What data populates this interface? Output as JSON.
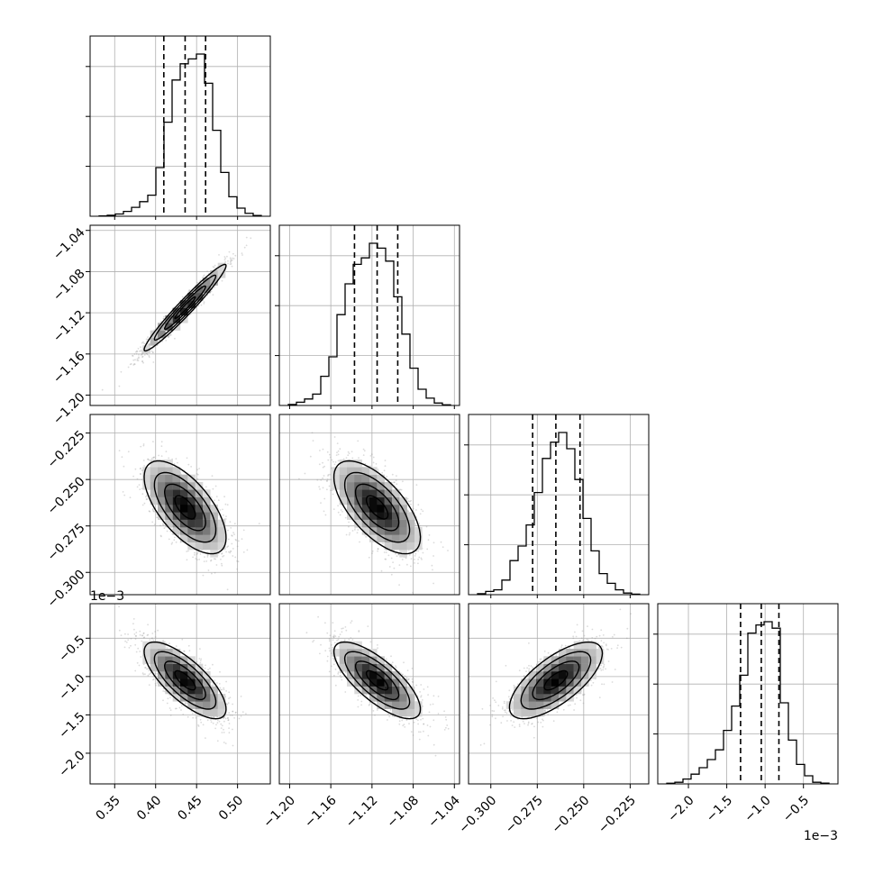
{
  "chart_data": {
    "type": "corner",
    "title": "",
    "grid": true,
    "parameters": [
      {
        "index": 0,
        "xlim": [
          0.32,
          0.54
        ],
        "ticks": [
          0.35,
          0.4,
          0.45,
          0.5
        ],
        "tick_labels": [
          "0.35",
          "0.40",
          "0.45",
          "0.50"
        ],
        "quantiles": [
          0.41,
          0.436,
          0.461
        ],
        "offset_label": ""
      },
      {
        "index": 1,
        "xlim": [
          -1.21,
          -1.035
        ],
        "ticks": [
          -1.2,
          -1.16,
          -1.12,
          -1.08,
          -1.04
        ],
        "tick_labels": [
          "−1.20",
          "−1.16",
          "−1.12",
          "−1.08",
          "−1.04"
        ],
        "quantiles": [
          -1.137,
          -1.115,
          -1.095
        ],
        "offset_label": ""
      },
      {
        "index": 2,
        "xlim": [
          -0.312,
          -0.215
        ],
        "ticks": [
          -0.3,
          -0.275,
          -0.25,
          -0.225
        ],
        "tick_labels": [
          "−0.300",
          "−0.275",
          "−0.250",
          "−0.225"
        ],
        "quantiles": [
          -0.2775,
          -0.265,
          -0.252
        ],
        "offset_label": ""
      },
      {
        "index": 3,
        "xlim": [
          -2.4,
          -0.05
        ],
        "ticks": [
          -2.0,
          -1.5,
          -1.0,
          -0.5
        ],
        "tick_labels": [
          "−2.0",
          "−1.5",
          "−1.0",
          "−0.5"
        ],
        "quantiles": [
          -1.32,
          -1.05,
          -0.82
        ],
        "offset_label": "1e−3"
      }
    ],
    "histograms": [
      [
        0.002,
        0.006,
        0.014,
        0.03,
        0.055,
        0.09,
        0.13,
        0.3,
        0.58,
        0.84,
        0.94,
        0.97,
        1.0,
        0.82,
        0.53,
        0.27,
        0.12,
        0.05,
        0.018,
        0.005
      ],
      [
        0.006,
        0.02,
        0.04,
        0.07,
        0.18,
        0.3,
        0.56,
        0.75,
        0.87,
        0.91,
        1.0,
        0.97,
        0.89,
        0.67,
        0.44,
        0.23,
        0.1,
        0.045,
        0.015,
        0.004
      ],
      [
        0.006,
        0.02,
        0.03,
        0.09,
        0.21,
        0.3,
        0.43,
        0.63,
        0.84,
        0.94,
        1.0,
        0.9,
        0.71,
        0.47,
        0.27,
        0.13,
        0.07,
        0.03,
        0.01,
        0.003
      ],
      [
        0.004,
        0.01,
        0.03,
        0.06,
        0.1,
        0.15,
        0.21,
        0.33,
        0.48,
        0.67,
        0.93,
        0.98,
        1.0,
        0.96,
        0.5,
        0.27,
        0.12,
        0.05,
        0.01,
        0.005
      ]
    ],
    "pairs": [
      {
        "row": 1,
        "col": 0,
        "mean": [
          0.436,
          -1.115
        ],
        "sd": [
          0.025,
          0.021
        ],
        "corr": 0.97,
        "hist_max": 1.0
      },
      {
        "row": 2,
        "col": 0,
        "mean": [
          0.436,
          -0.265
        ],
        "sd": [
          0.025,
          0.0125
        ],
        "corr": -0.65
      },
      {
        "row": 2,
        "col": 1,
        "mean": [
          -1.115,
          -0.265
        ],
        "sd": [
          0.021,
          0.0125
        ],
        "corr": -0.65
      },
      {
        "row": 3,
        "col": 0,
        "mean": [
          0.436,
          -1.05
        ],
        "sd": [
          0.025,
          0.25
        ],
        "corr": -0.75
      },
      {
        "row": 3,
        "col": 1,
        "mean": [
          -1.115,
          -1.05
        ],
        "sd": [
          0.021,
          0.25
        ],
        "corr": -0.75
      },
      {
        "row": 3,
        "col": 2,
        "mean": [
          -0.265,
          -1.05
        ],
        "sd": [
          0.0125,
          0.25
        ],
        "corr": 0.7
      }
    ],
    "row_ticks": [
      null,
      {
        "ticks": [
          -1.2,
          -1.16,
          -1.12,
          -1.08,
          -1.04
        ],
        "tick_labels": [
          "−1.20",
          "−1.16",
          "−1.12",
          "−1.08",
          "−1.04"
        ]
      },
      {
        "ticks": [
          -0.3,
          -0.275,
          -0.25,
          -0.225
        ],
        "tick_labels": [
          "−0.300",
          "−0.275",
          "−0.250",
          "−0.225"
        ]
      },
      {
        "ticks": [
          -2.0,
          -1.5,
          -1.0,
          -0.5
        ],
        "tick_labels": [
          "−2.0",
          "−1.5",
          "−1.0",
          "−0.5"
        ],
        "offset_label": "1e−3"
      }
    ],
    "contour_levels_sigma": [
      0.5,
      1.0,
      1.5,
      2.0
    ],
    "colors": {
      "line": "#000000",
      "grid": "#b0b0b0",
      "points": "#999999"
    }
  }
}
